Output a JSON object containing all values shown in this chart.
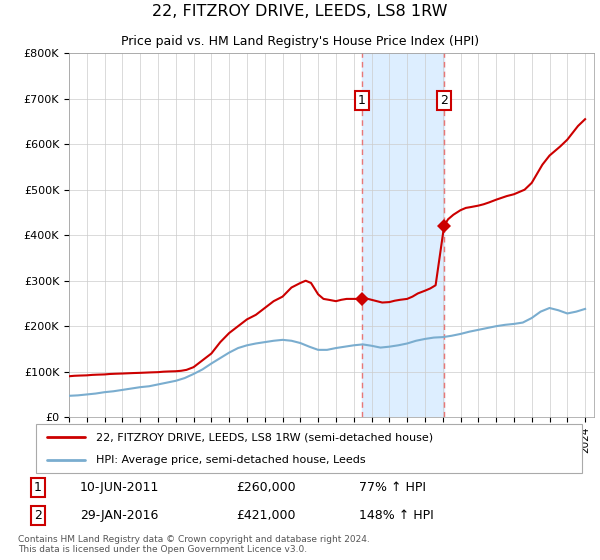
{
  "title": "22, FITZROY DRIVE, LEEDS, LS8 1RW",
  "subtitle": "Price paid vs. HM Land Registry's House Price Index (HPI)",
  "legend_line1": "22, FITZROY DRIVE, LEEDS, LS8 1RW (semi-detached house)",
  "legend_line2": "HPI: Average price, semi-detached house, Leeds",
  "annotation1_date": "10-JUN-2011",
  "annotation1_price": "£260,000",
  "annotation1_hpi": "77% ↑ HPI",
  "annotation2_date": "29-JAN-2016",
  "annotation2_price": "£421,000",
  "annotation2_hpi": "148% ↑ HPI",
  "footer": "Contains HM Land Registry data © Crown copyright and database right 2024.\nThis data is licensed under the Open Government Licence v3.0.",
  "property_color": "#cc0000",
  "hpi_color": "#7aadcf",
  "highlight_color": "#ddeeff",
  "vline_color": "#e87777",
  "ylim": [
    0,
    800000
  ],
  "yticks": [
    0,
    100000,
    200000,
    300000,
    400000,
    500000,
    600000,
    700000,
    800000
  ],
  "ytick_labels": [
    "£0",
    "£100K",
    "£200K",
    "£300K",
    "£400K",
    "£500K",
    "£600K",
    "£700K",
    "£800K"
  ],
  "sale1_x": 2011.44,
  "sale1_y": 260000,
  "sale2_x": 2016.08,
  "sale2_y": 421000,
  "highlight_x_start": 2011.44,
  "highlight_x_end": 2016.08,
  "property_line_x": [
    1995,
    1995.3,
    1995.6,
    1996,
    1996.3,
    1996.6,
    1997,
    1997.3,
    1997.6,
    1998,
    1998.3,
    1998.6,
    1999,
    1999.3,
    1999.6,
    2000,
    2000.3,
    2000.6,
    2001,
    2001.3,
    2001.6,
    2002,
    2002.5,
    2003,
    2003.5,
    2004,
    2004.5,
    2005,
    2005.5,
    2006,
    2006.5,
    2007,
    2007.5,
    2008,
    2008.3,
    2008.6,
    2009,
    2009.3,
    2009.6,
    2010,
    2010.3,
    2010.6,
    2011,
    2011.44,
    2011.44,
    2011.6,
    2012,
    2012.3,
    2012.6,
    2013,
    2013.3,
    2013.6,
    2014,
    2014.3,
    2014.6,
    2015,
    2015.3,
    2015.6,
    2016.08,
    2016.08,
    2016.3,
    2016.6,
    2017,
    2017.3,
    2017.6,
    2018,
    2018.3,
    2018.6,
    2019,
    2019.3,
    2019.6,
    2020,
    2020.3,
    2020.6,
    2021,
    2021.3,
    2021.6,
    2022,
    2022.3,
    2022.6,
    2023,
    2023.3,
    2023.6,
    2024
  ],
  "property_line_y": [
    90000,
    91000,
    91500,
    92000,
    93000,
    93500,
    94000,
    95000,
    95500,
    96000,
    96500,
    97000,
    97500,
    98000,
    98500,
    99000,
    100000,
    100500,
    101000,
    102000,
    104000,
    110000,
    125000,
    140000,
    165000,
    185000,
    200000,
    215000,
    225000,
    240000,
    255000,
    265000,
    285000,
    295000,
    300000,
    295000,
    270000,
    260000,
    258000,
    255000,
    258000,
    260000,
    260000,
    260000,
    260000,
    262000,
    258000,
    255000,
    252000,
    253000,
    256000,
    258000,
    260000,
    265000,
    272000,
    278000,
    283000,
    290000,
    421000,
    421000,
    435000,
    445000,
    455000,
    460000,
    462000,
    465000,
    468000,
    472000,
    478000,
    482000,
    486000,
    490000,
    495000,
    500000,
    515000,
    535000,
    555000,
    575000,
    585000,
    595000,
    610000,
    625000,
    640000,
    655000
  ],
  "hpi_line_x": [
    1995,
    1995.5,
    1996,
    1996.5,
    1997,
    1997.5,
    1998,
    1998.5,
    1999,
    1999.5,
    2000,
    2000.5,
    2001,
    2001.5,
    2002,
    2002.5,
    2003,
    2003.5,
    2004,
    2004.5,
    2005,
    2005.5,
    2006,
    2006.5,
    2007,
    2007.5,
    2008,
    2008.5,
    2009,
    2009.5,
    2010,
    2010.5,
    2011,
    2011.5,
    2012,
    2012.5,
    2013,
    2013.5,
    2014,
    2014.5,
    2015,
    2015.5,
    2016,
    2016.5,
    2017,
    2017.5,
    2018,
    2018.5,
    2019,
    2019.5,
    2020,
    2020.5,
    2021,
    2021.5,
    2022,
    2022.5,
    2023,
    2023.5,
    2024
  ],
  "hpi_line_y": [
    47000,
    48000,
    50000,
    52000,
    55000,
    57000,
    60000,
    63000,
    66000,
    68000,
    72000,
    76000,
    80000,
    86000,
    95000,
    105000,
    118000,
    130000,
    142000,
    152000,
    158000,
    162000,
    165000,
    168000,
    170000,
    168000,
    163000,
    155000,
    148000,
    148000,
    152000,
    155000,
    158000,
    160000,
    157000,
    153000,
    155000,
    158000,
    162000,
    168000,
    172000,
    175000,
    176000,
    179000,
    183000,
    188000,
    192000,
    196000,
    200000,
    203000,
    205000,
    208000,
    218000,
    232000,
    240000,
    235000,
    228000,
    232000,
    238000
  ],
  "xmin": 1995,
  "xmax": 2024.5,
  "xticks": [
    1995,
    1996,
    1997,
    1998,
    1999,
    2000,
    2001,
    2002,
    2003,
    2004,
    2005,
    2006,
    2007,
    2008,
    2009,
    2010,
    2011,
    2012,
    2013,
    2014,
    2015,
    2016,
    2017,
    2018,
    2019,
    2020,
    2021,
    2022,
    2023,
    2024
  ]
}
